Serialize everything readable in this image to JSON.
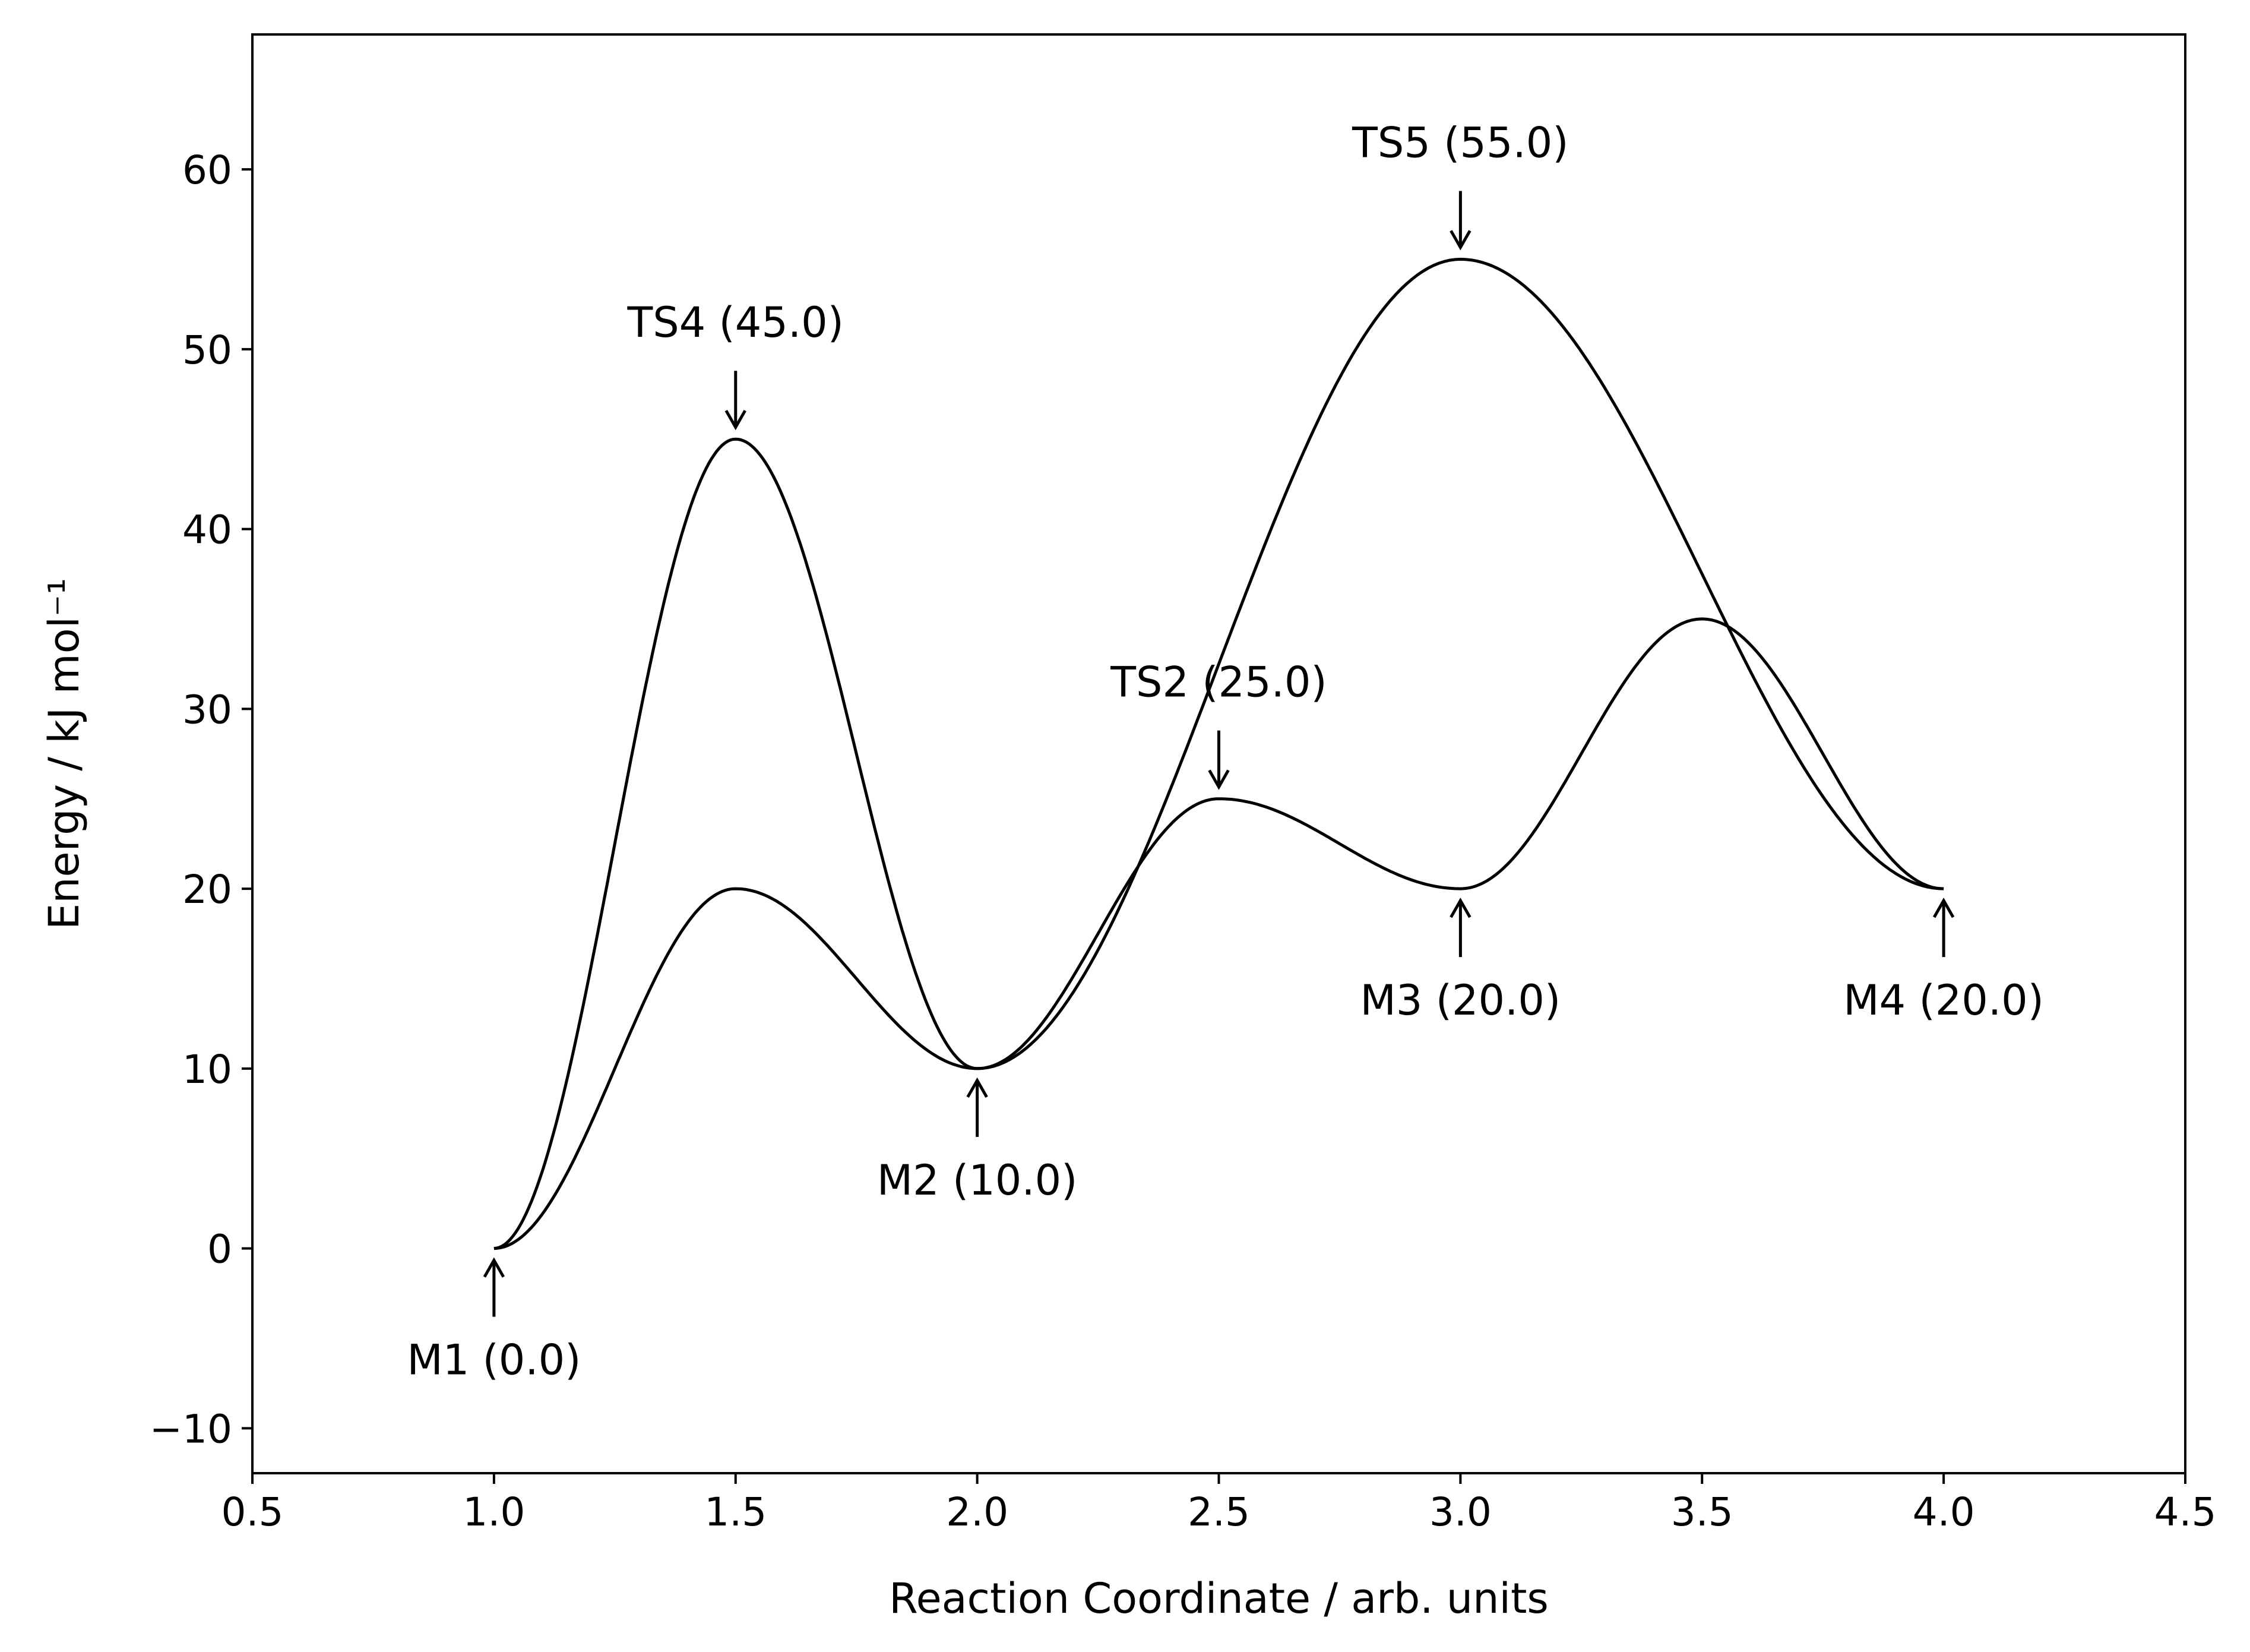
{
  "chart_data": {
    "type": "line",
    "title": "",
    "xlabel": "Reaction Coordinate / arb. units",
    "ylabel": "Energy / kJ mol⁻¹",
    "xlim": [
      0.5,
      4.5
    ],
    "ylim": [
      -12.5,
      67.5
    ],
    "xticks": [
      0.5,
      1.0,
      1.5,
      2.0,
      2.5,
      3.0,
      3.5,
      4.0,
      4.5
    ],
    "xtick_labels": [
      "0.5",
      "1.0",
      "1.5",
      "2.0",
      "2.5",
      "3.0",
      "3.5",
      "4.0",
      "4.5"
    ],
    "yticks": [
      -10,
      0,
      10,
      20,
      30,
      40,
      50,
      60
    ],
    "ytick_labels": [
      "−10",
      "0",
      "10",
      "20",
      "30",
      "40",
      "50",
      "60"
    ],
    "grid": false,
    "line_color": "#000000",
    "series": [
      {
        "x": [
          1.0,
          1.5,
          2.0,
          2.5,
          3.0,
          3.5,
          4.0
        ],
        "y": [
          0.0,
          20.0,
          10.0,
          25.0,
          20.0,
          35.0,
          20.0
        ]
      },
      {
        "x": [
          1.0,
          1.5,
          2.0,
          3.0,
          4.0
        ],
        "y": [
          0.0,
          45.0,
          10.0,
          55.0,
          20.0
        ]
      }
    ],
    "annotations": [
      {
        "text": "M1 (0.0)",
        "x": 1.0,
        "y": 0.0,
        "position": "below"
      },
      {
        "text": "M2 (10.0)",
        "x": 2.0,
        "y": 10.0,
        "position": "below"
      },
      {
        "text": "M3 (20.0)",
        "x": 3.0,
        "y": 20.0,
        "position": "below"
      },
      {
        "text": "M4 (20.0)",
        "x": 4.0,
        "y": 20.0,
        "position": "below"
      },
      {
        "text": "TS2 (25.0)",
        "x": 2.5,
        "y": 25.0,
        "position": "above"
      },
      {
        "text": "TS4 (45.0)",
        "x": 1.5,
        "y": 45.0,
        "position": "above"
      },
      {
        "text": "TS5 (55.0)",
        "x": 3.0,
        "y": 55.0,
        "position": "above"
      }
    ]
  }
}
